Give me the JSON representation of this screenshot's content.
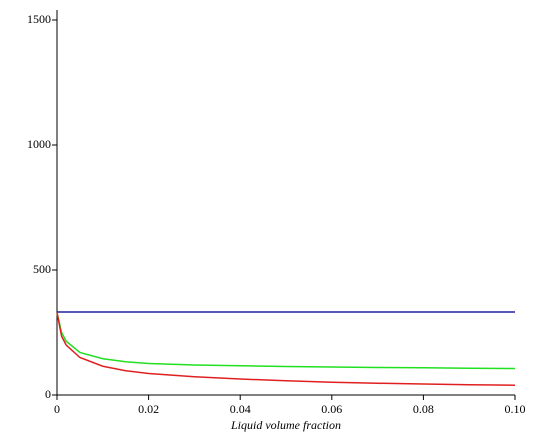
{
  "chart_data": {
    "type": "line",
    "x_label": "Liquid  volume  fraction",
    "x": [
      0,
      0.001,
      0.002,
      0.005,
      0.01,
      0.015,
      0.02,
      0.03,
      0.04,
      0.05,
      0.06,
      0.07,
      0.08,
      0.09,
      0.1
    ],
    "series": [
      {
        "color": "#2020a0",
        "values": [
          332,
          332,
          332,
          332,
          332,
          332,
          332,
          332,
          332,
          332,
          332,
          332,
          332,
          332,
          332
        ]
      },
      {
        "color": "#20e020",
        "values": [
          330,
          250,
          215,
          170,
          145,
          133,
          126,
          120,
          117,
          114,
          112,
          110,
          109,
          107,
          106
        ]
      },
      {
        "color": "#e02020",
        "values": [
          330,
          235,
          200,
          150,
          115,
          97,
          86,
          73,
          64,
          57,
          51,
          47,
          44,
          41,
          39
        ]
      }
    ],
    "xlim": [
      0,
      0.1
    ],
    "xticks": [
      0,
      0.02,
      0.04,
      0.06,
      0.08,
      {
        "value": 0.1,
        "label": "0.10"
      }
    ],
    "ylim": [
      0,
      1540
    ],
    "yticks": [
      0,
      500,
      1000,
      1500
    ]
  }
}
